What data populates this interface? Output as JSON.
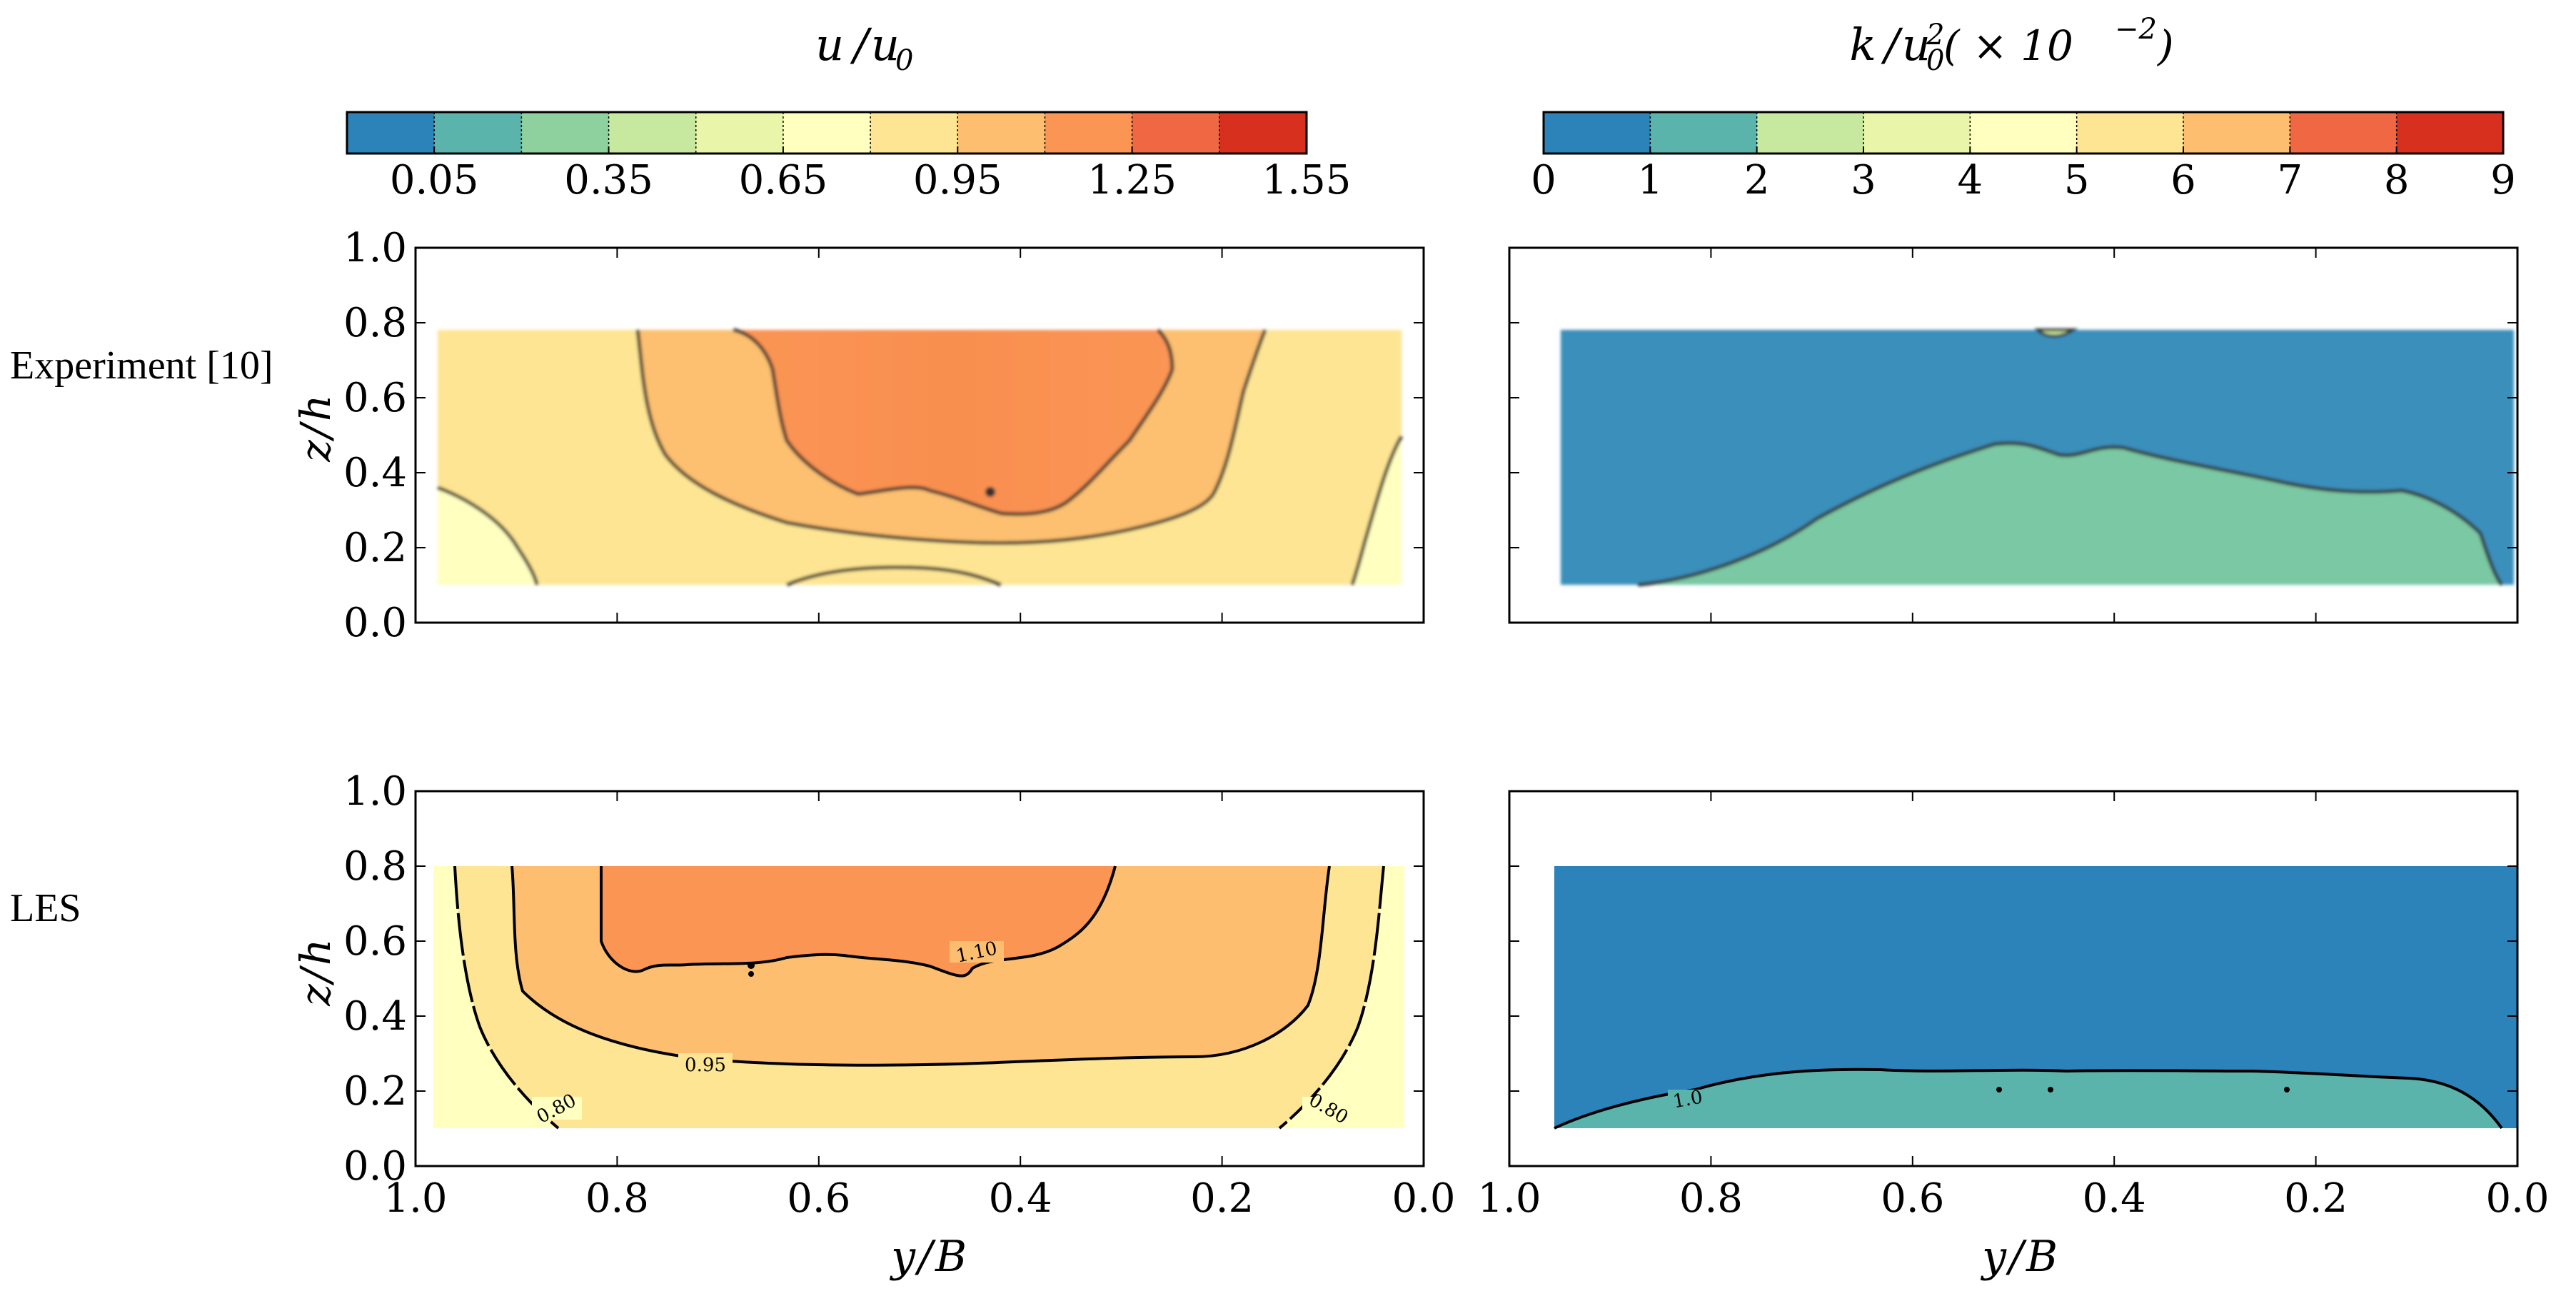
{
  "figure": {
    "row_labels": [
      "Experiment [10]",
      "LES"
    ],
    "col_titles": {
      "u": {
        "num": "u",
        "den": "u",
        "den_sub": "0"
      },
      "k": {
        "num": "k",
        "den": "u",
        "den_sub": "0",
        "den_sup": "2",
        "factor": "( × 10",
        "factor_exp": "−2",
        "close": ")"
      }
    }
  },
  "colorbars": [
    {
      "id": "u",
      "levels": [
        -0.1,
        0.05,
        0.2,
        0.35,
        0.5,
        0.65,
        0.8,
        0.95,
        1.1,
        1.25,
        1.4,
        1.55
      ],
      "colors": [
        "#2b83ba",
        "#5ab4ac",
        "#8fd19e",
        "#c7e89f",
        "#e9f5a8",
        "#ffffbf",
        "#fee593",
        "#fdbf6f",
        "#fa9554",
        "#f06843",
        "#d7301f"
      ],
      "tick_labels": [
        "0.05",
        "0.35",
        "0.65",
        "0.95",
        "1.25",
        "1.55"
      ],
      "tick_values": [
        0.05,
        0.35,
        0.65,
        0.95,
        1.25,
        1.55
      ]
    },
    {
      "id": "k",
      "levels": [
        0,
        1,
        2,
        3,
        4,
        5,
        6,
        7,
        8,
        9
      ],
      "colors": [
        "#2b83ba",
        "#5ab4ac",
        "#c7e89f",
        "#e9f5a8",
        "#ffffbf",
        "#fee593",
        "#fdbf6f",
        "#f06843",
        "#d7301f"
      ],
      "tick_labels": [
        "0",
        "1",
        "2",
        "3",
        "4",
        "5",
        "6",
        "7",
        "8",
        "9"
      ],
      "tick_values": [
        0,
        1,
        2,
        3,
        4,
        5,
        6,
        7,
        8,
        9
      ]
    }
  ],
  "axes": {
    "xlabel": {
      "var": "y",
      "den": "B"
    },
    "ylabel": {
      "var": "z",
      "den": "h"
    },
    "xticks": [
      "1.0",
      "0.8",
      "0.6",
      "0.4",
      "0.2",
      "0.0"
    ],
    "xtick_values": [
      1.0,
      0.8,
      0.6,
      0.4,
      0.2,
      0.0
    ],
    "yticks": [
      "0.0",
      "0.2",
      "0.4",
      "0.6",
      "0.8",
      "1.0"
    ],
    "ytick_values": [
      0.0,
      0.2,
      0.4,
      0.6,
      0.8,
      1.0
    ],
    "xlim": [
      1.0,
      0.0
    ],
    "ylim": [
      0.0,
      1.0
    ]
  },
  "chart_data": [
    {
      "type": "contour",
      "panel": "experiment-u",
      "variable": "u/u0",
      "x_range": [
        0.98,
        0.02
      ],
      "y_range": [
        0.1,
        0.78
      ],
      "fill_levels": [
        {
          "region": "outer-corners",
          "range": [
            0.65,
            0.8
          ],
          "color": "#ffffbf"
        },
        {
          "region": "side-band",
          "range": [
            0.8,
            0.95
          ],
          "color": "#fee593"
        },
        {
          "region": "middle-band",
          "range": [
            0.95,
            1.1
          ],
          "color": "#fdbf6f"
        },
        {
          "region": "core",
          "range": [
            1.1,
            1.25
          ],
          "color": "#fa9554"
        }
      ],
      "contour_lines": [
        {
          "level": 0.8,
          "side": "left",
          "points": [
            [
              0.98,
              0.37
            ],
            [
              0.9,
              0.3
            ],
            [
              0.85,
              0.22
            ],
            [
              0.84,
              0.1
            ]
          ]
        },
        {
          "level": 0.8,
          "side": "right",
          "points": [
            [
              0.02,
              0.49
            ],
            [
              0.06,
              0.4
            ],
            [
              0.09,
              0.25
            ],
            [
              0.11,
              0.1
            ]
          ]
        },
        {
          "level": 0.95,
          "side": "outer",
          "points": [
            [
              0.78,
              0.78
            ],
            [
              0.77,
              0.7
            ],
            [
              0.74,
              0.52
            ],
            [
              0.68,
              0.35
            ],
            [
              0.6,
              0.25
            ],
            [
              0.5,
              0.22
            ],
            [
              0.4,
              0.2
            ],
            [
              0.3,
              0.22
            ],
            [
              0.24,
              0.26
            ],
            [
              0.22,
              0.32
            ],
            [
              0.2,
              0.5
            ],
            [
              0.17,
              0.62
            ],
            [
              0.15,
              0.78
            ]
          ]
        },
        {
          "level": 1.1,
          "side": "core",
          "points": [
            [
              0.68,
              0.78
            ],
            [
              0.63,
              0.75
            ],
            [
              0.61,
              0.6
            ],
            [
              0.6,
              0.46
            ],
            [
              0.55,
              0.38
            ],
            [
              0.5,
              0.34
            ],
            [
              0.46,
              0.37
            ],
            [
              0.4,
              0.32
            ],
            [
              0.36,
              0.26
            ],
            [
              0.32,
              0.3
            ],
            [
              0.29,
              0.36
            ],
            [
              0.25,
              0.5
            ],
            [
              0.24,
              0.63
            ],
            [
              0.28,
              0.78
            ]
          ]
        }
      ]
    },
    {
      "type": "contour",
      "panel": "experiment-k",
      "variable": "k/u0^2 (x10^-2)",
      "x_range": [
        0.98,
        0.02
      ],
      "y_range": [
        0.1,
        0.78
      ],
      "fill_levels": [
        {
          "region": "upper",
          "range": [
            0,
            1
          ],
          "color": "#2b83ba"
        },
        {
          "region": "near-bed",
          "range": [
            1,
            2
          ],
          "color": "#5ab4ac"
        }
      ],
      "contour_lines": [
        {
          "level": 1.0,
          "points": [
            [
              0.88,
              0.1
            ],
            [
              0.8,
              0.13
            ],
            [
              0.7,
              0.21
            ],
            [
              0.62,
              0.29
            ],
            [
              0.5,
              0.34
            ],
            [
              0.44,
              0.37
            ],
            [
              0.37,
              0.33
            ],
            [
              0.3,
              0.33
            ],
            [
              0.2,
              0.26
            ],
            [
              0.12,
              0.22
            ],
            [
              0.06,
              0.22
            ],
            [
              0.03,
              0.1
            ]
          ]
        },
        {
          "level": 1.0,
          "note": "small cap",
          "points": [
            [
              0.54,
              0.78
            ],
            [
              0.52,
              0.75
            ],
            [
              0.49,
              0.78
            ]
          ]
        }
      ]
    },
    {
      "type": "contour",
      "panel": "les-u",
      "variable": "u/u0",
      "x_range": [
        0.98,
        0.02
      ],
      "y_range": [
        0.1,
        0.8
      ],
      "fill_levels": [
        {
          "region": "outer-corners",
          "range": [
            0.65,
            0.8
          ],
          "color": "#ffffbf"
        },
        {
          "region": "side-band",
          "range": [
            0.8,
            0.95
          ],
          "color": "#fee593"
        },
        {
          "region": "middle-band",
          "range": [
            0.95,
            1.1
          ],
          "color": "#fdbf6f"
        },
        {
          "region": "core",
          "range": [
            1.1,
            1.25
          ],
          "color": "#fa9554"
        }
      ],
      "contour_lines": [
        {
          "level": 0.8,
          "label": "0.80",
          "side": "left",
          "points": [
            [
              0.96,
              0.8
            ],
            [
              0.94,
              0.6
            ],
            [
              0.9,
              0.4
            ],
            [
              0.86,
              0.22
            ],
            [
              0.82,
              0.12
            ]
          ]
        },
        {
          "level": 0.8,
          "label": "0.80",
          "side": "right",
          "points": [
            [
              0.04,
              0.8
            ],
            [
              0.06,
              0.6
            ],
            [
              0.1,
              0.4
            ],
            [
              0.14,
              0.22
            ],
            [
              0.18,
              0.12
            ]
          ]
        },
        {
          "level": 0.95,
          "label": "0.95",
          "points": [
            [
              0.9,
              0.8
            ],
            [
              0.9,
              0.55
            ],
            [
              0.86,
              0.36
            ],
            [
              0.76,
              0.27
            ],
            [
              0.64,
              0.25
            ],
            [
              0.5,
              0.24
            ],
            [
              0.36,
              0.25
            ],
            [
              0.24,
              0.27
            ],
            [
              0.14,
              0.36
            ],
            [
              0.1,
              0.55
            ],
            [
              0.1,
              0.8
            ]
          ]
        },
        {
          "level": 1.1,
          "label": "1.10",
          "points": [
            [
              0.82,
              0.8
            ],
            [
              0.81,
              0.6
            ],
            [
              0.77,
              0.54
            ],
            [
              0.7,
              0.58
            ],
            [
              0.5,
              0.6
            ],
            [
              0.38,
              0.56
            ],
            [
              0.34,
              0.53
            ],
            [
              0.28,
              0.56
            ],
            [
              0.2,
              0.62
            ],
            [
              0.19,
              0.8
            ]
          ]
        }
      ]
    },
    {
      "type": "contour",
      "panel": "les-k",
      "variable": "k/u0^2 (x10^-2)",
      "x_range": [
        0.98,
        0.02
      ],
      "y_range": [
        0.1,
        0.8
      ],
      "fill_levels": [
        {
          "region": "upper",
          "range": [
            0,
            1
          ],
          "color": "#2b83ba"
        },
        {
          "region": "near-bed",
          "range": [
            1,
            2
          ],
          "color": "#5ab4ac"
        }
      ],
      "contour_lines": [
        {
          "level": 1.0,
          "label": "1.0",
          "points": [
            [
              0.97,
              0.1
            ],
            [
              0.9,
              0.15
            ],
            [
              0.82,
              0.2
            ],
            [
              0.7,
              0.23
            ],
            [
              0.6,
              0.24
            ],
            [
              0.5,
              0.23
            ],
            [
              0.4,
              0.24
            ],
            [
              0.3,
              0.24
            ],
            [
              0.2,
              0.22
            ],
            [
              0.1,
              0.2
            ],
            [
              0.05,
              0.17
            ],
            [
              0.02,
              0.1
            ]
          ]
        }
      ]
    }
  ]
}
